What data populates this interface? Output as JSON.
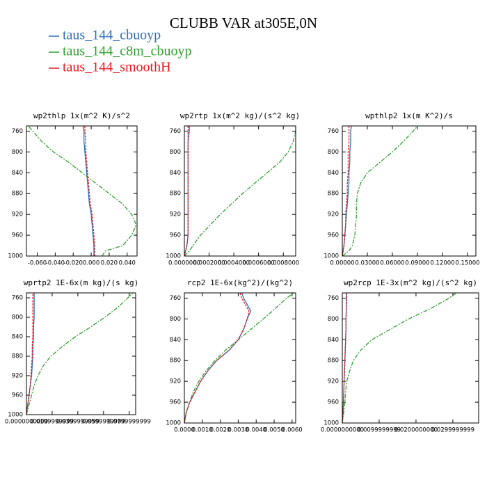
{
  "title": "CLUBB VAR at305E,0N",
  "chart_data": [
    {
      "type": "line",
      "title": "wp2thlp  1x(m^2 K)/s^2",
      "y": [
        1000,
        990,
        980,
        960,
        940,
        920,
        900,
        880,
        860,
        840,
        820,
        800,
        780,
        760,
        750
      ],
      "series": [
        {
          "name": "taus_144_cbuoyp",
          "color": "#2f6fb8",
          "values": [
            0.003,
            0.003,
            0.003,
            0.002,
            0.001,
            0.0,
            -0.002,
            -0.003,
            -0.004,
            -0.005,
            -0.006,
            -0.007,
            -0.008,
            -0.008,
            -0.009
          ]
        },
        {
          "name": "taus_144_c8m_cbuoyp",
          "color": "#2ea02e",
          "values": [
            0.012,
            0.016,
            0.035,
            0.045,
            0.05,
            0.045,
            0.035,
            0.02,
            0.005,
            -0.01,
            -0.025,
            -0.042,
            -0.055,
            -0.065,
            -0.07
          ]
        },
        {
          "name": "taus_144_smoothH",
          "color": "#e41a1c",
          "values": [
            0.004,
            0.004,
            0.004,
            0.003,
            0.002,
            0.001,
            -0.001,
            -0.002,
            -0.003,
            -0.004,
            -0.005,
            -0.006,
            -0.006,
            -0.007,
            -0.007
          ]
        }
      ],
      "xlim": [
        -0.072,
        0.051
      ],
      "xticks": [
        {
          "value": -0.06,
          "label": "-0.060"
        },
        {
          "value": -0.04,
          "label": "-0.040"
        },
        {
          "value": -0.02,
          "label": "-0.020"
        },
        {
          "value": 0,
          "label": "0.000"
        },
        {
          "value": 0.02,
          "label": "0.020"
        },
        {
          "value": 0.04,
          "label": "0.040"
        }
      ],
      "ylim": [
        1000,
        750
      ],
      "yticks": [
        760,
        800,
        840,
        880,
        920,
        960,
        1000
      ]
    },
    {
      "type": "line",
      "title": "wp2rtp  1x(m^2 kg)/(s^2 kg)",
      "y": [
        1000,
        990,
        980,
        960,
        940,
        920,
        900,
        880,
        860,
        840,
        820,
        800,
        780,
        760,
        750
      ],
      "series": [
        {
          "name": "taus_144_cbuoyp",
          "color": "#2f6fb8",
          "values": [
            0.0,
            1e-05,
            2e-05,
            3e-05,
            3e-05,
            3e-05,
            3e-05,
            3e-05,
            3e-05,
            3e-05,
            3e-05,
            3e-05,
            3e-05,
            4e-05,
            4e-05
          ]
        },
        {
          "name": "taus_144_c8m_cbuoyp",
          "color": "#2ea02e",
          "values": [
            0.0,
            4e-05,
            7e-05,
            0.00013,
            0.00021,
            0.00029,
            0.00038,
            0.00047,
            0.00057,
            0.00067,
            0.00077,
            0.00084,
            0.00088,
            0.0009,
            0.0009
          ]
        },
        {
          "name": "taus_144_smoothH",
          "color": "#e41a1c",
          "values": [
            0.0,
            1e-05,
            2e-05,
            3e-05,
            3e-05,
            3e-05,
            3e-05,
            3e-05,
            3e-05,
            3e-05,
            3e-05,
            3e-05,
            3e-05,
            3e-05,
            3e-05
          ]
        }
      ],
      "xlim": [
        0,
        0.0009
      ],
      "xticks": [
        {
          "value": 0,
          "label": "0.0000000"
        },
        {
          "value": 0.0002,
          "label": "0.0002000"
        },
        {
          "value": 0.0004,
          "label": "0.0004000"
        },
        {
          "value": 0.0006,
          "label": "0.0006000"
        },
        {
          "value": 0.0008,
          "label": "0.0008000"
        }
      ],
      "ylim": [
        1000,
        750
      ],
      "yticks": [
        760,
        800,
        840,
        880,
        920,
        960,
        1000
      ]
    },
    {
      "type": "line",
      "title": "wpthlp2  1x(m K^2)/s",
      "y": [
        1000,
        990,
        980,
        960,
        940,
        920,
        900,
        880,
        860,
        840,
        820,
        800,
        780,
        760,
        750
      ],
      "series": [
        {
          "name": "taus_144_cbuoyp",
          "color": "#2f6fb8",
          "values": [
            0.0,
            0.001,
            0.002,
            0.003,
            0.004,
            0.005,
            0.006,
            0.007,
            0.008,
            0.008,
            0.009,
            0.009,
            0.01,
            0.01,
            0.011
          ]
        },
        {
          "name": "taus_144_c8m_cbuoyp",
          "color": "#2ea02e",
          "values": [
            0.0,
            0.008,
            0.012,
            0.015,
            0.016,
            0.017,
            0.017,
            0.018,
            0.022,
            0.03,
            0.045,
            0.06,
            0.073,
            0.085,
            0.09
          ]
        },
        {
          "name": "taus_144_smoothH",
          "color": "#e41a1c",
          "values": [
            0.0,
            0.001,
            0.002,
            0.003,
            0.004,
            0.004,
            0.005,
            0.006,
            0.006,
            0.007,
            0.007,
            0.007,
            0.008,
            0.008,
            0.008
          ]
        }
      ],
      "xlim": [
        0,
        0.16
      ],
      "xticks": [
        {
          "value": 0,
          "label": "0.00000"
        },
        {
          "value": 0.03,
          "label": "0.03000"
        },
        {
          "value": 0.06,
          "label": "0.06000"
        },
        {
          "value": 0.09,
          "label": "0.09000"
        },
        {
          "value": 0.12,
          "label": "0.12000"
        },
        {
          "value": 0.15,
          "label": "0.15000"
        }
      ],
      "ylim": [
        1000,
        750
      ],
      "yticks": [
        760,
        800,
        840,
        880,
        920,
        960,
        1000
      ]
    },
    {
      "type": "line",
      "title": "wprtp2  1E-6x(m kg)/(s kg)",
      "y": [
        1000,
        990,
        980,
        960,
        940,
        920,
        900,
        880,
        860,
        840,
        820,
        800,
        780,
        760,
        750
      ],
      "series": [
        {
          "name": "taus_144_cbuoyp",
          "color": "#2f6fb8",
          "values": [
            0.0,
            0.0005,
            0.001,
            0.002,
            0.003,
            0.004,
            0.0045,
            0.005,
            0.005,
            0.0055,
            0.0055,
            0.006,
            0.006,
            0.006,
            0.006
          ]
        },
        {
          "name": "taus_144_c8m_cbuoyp",
          "color": "#2ea02e",
          "values": [
            0.0,
            0.001,
            0.002,
            0.004,
            0.006,
            0.009,
            0.013,
            0.019,
            0.028,
            0.038,
            0.05,
            0.061,
            0.071,
            0.079,
            0.083
          ]
        },
        {
          "name": "taus_144_smoothH",
          "color": "#e41a1c",
          "values": [
            0.0,
            0.0005,
            0.001,
            0.002,
            0.003,
            0.0035,
            0.004,
            0.0045,
            0.0045,
            0.005,
            0.005,
            0.005,
            0.005,
            0.005,
            0.005
          ]
        }
      ],
      "xlim": [
        0,
        0.085
      ],
      "xticks": [
        {
          "value": 0,
          "label": "0.0000000000"
        },
        {
          "value": 0.02,
          "label": "0.0199999999"
        },
        {
          "value": 0.04,
          "label": "0.0399999999"
        },
        {
          "value": 0.06,
          "label": "0.0599999999"
        },
        {
          "value": 0.08,
          "label": "0.0799999999"
        }
      ],
      "ylim": [
        1000,
        750
      ],
      "yticks": [
        760,
        800,
        840,
        880,
        920,
        960,
        1000
      ]
    },
    {
      "type": "line",
      "title": "rcp2  1E-6x(kg^2)/(kg^2)",
      "y": [
        1000,
        990,
        980,
        960,
        940,
        920,
        900,
        880,
        860,
        840,
        820,
        800,
        785,
        760,
        750
      ],
      "series": [
        {
          "name": "taus_144_cbuoyp",
          "color": "#2f6fb8",
          "values": [
            0.0,
            5e-05,
            0.0001,
            0.0003,
            0.0006,
            0.0009,
            0.0013,
            0.0018,
            0.0025,
            0.003,
            0.0033,
            0.0035,
            0.0037,
            0.0033,
            0.0032
          ]
        },
        {
          "name": "taus_144_c8m_cbuoyp",
          "color": "#2ea02e",
          "values": [
            0.0,
            5e-05,
            0.0001,
            0.0003,
            0.0005,
            0.0008,
            0.0012,
            0.0017,
            0.0023,
            0.003,
            0.0037,
            0.0044,
            0.0049,
            0.0057,
            0.0061
          ]
        },
        {
          "name": "taus_144_smoothH",
          "color": "#e41a1c",
          "values": [
            0.0,
            5e-05,
            0.0001,
            0.0003,
            0.0006,
            0.0009,
            0.0013,
            0.0018,
            0.0025,
            0.003,
            0.0033,
            0.0035,
            0.0036,
            0.0032,
            0.0031
          ]
        }
      ],
      "xlim": [
        0,
        0.0062
      ],
      "xticks": [
        {
          "value": 0,
          "label": "0.0000"
        },
        {
          "value": 0.001,
          "label": "0.0010"
        },
        {
          "value": 0.002,
          "label": "0.0020"
        },
        {
          "value": 0.003,
          "label": "0.0030"
        },
        {
          "value": 0.004,
          "label": "0.0040"
        },
        {
          "value": 0.005,
          "label": "0.0050"
        },
        {
          "value": 0.006,
          "label": "0.0060"
        }
      ],
      "ylim": [
        1000,
        750
      ],
      "yticks": [
        760,
        800,
        840,
        880,
        920,
        960,
        1000
      ]
    },
    {
      "type": "line",
      "title": "wp2rcp  1E-3x(m^2 kg)/(s^2 kg)",
      "y": [
        1000,
        990,
        980,
        960,
        940,
        920,
        900,
        880,
        860,
        840,
        820,
        800,
        780,
        760,
        750
      ],
      "series": [
        {
          "name": "taus_144_cbuoyp",
          "color": "#2f6fb8",
          "values": [
            0.0,
            0.0001,
            0.0002,
            0.0003,
            0.0004,
            0.0005,
            0.0006,
            0.0007,
            0.0008,
            0.0009,
            0.001,
            0.001,
            0.0011,
            0.0012,
            0.0012
          ]
        },
        {
          "name": "taus_144_c8m_cbuoyp",
          "color": "#2ea02e",
          "values": [
            0.0,
            0.0002,
            0.0004,
            0.0007,
            0.0009,
            0.0012,
            0.002,
            0.003,
            0.005,
            0.008,
            0.013,
            0.018,
            0.024,
            0.029,
            0.031
          ]
        },
        {
          "name": "taus_144_smoothH",
          "color": "#e41a1c",
          "values": [
            0.0,
            0.0001,
            0.0002,
            0.0003,
            0.0004,
            0.0005,
            0.0006,
            0.0007,
            0.0008,
            0.0009,
            0.001,
            0.001,
            0.0011,
            0.0011,
            0.0011
          ]
        }
      ],
      "xlim": [
        0,
        0.037
      ],
      "xticks": [
        {
          "value": 0,
          "label": "0.0000000000"
        },
        {
          "value": 0.01,
          "label": "0.0099999999"
        },
        {
          "value": 0.02,
          "label": "0.0200000000"
        },
        {
          "value": 0.03,
          "label": "0.0299999999"
        }
      ],
      "ylim": [
        1000,
        750
      ],
      "yticks": [
        760,
        800,
        840,
        880,
        920,
        960,
        1000
      ]
    }
  ]
}
